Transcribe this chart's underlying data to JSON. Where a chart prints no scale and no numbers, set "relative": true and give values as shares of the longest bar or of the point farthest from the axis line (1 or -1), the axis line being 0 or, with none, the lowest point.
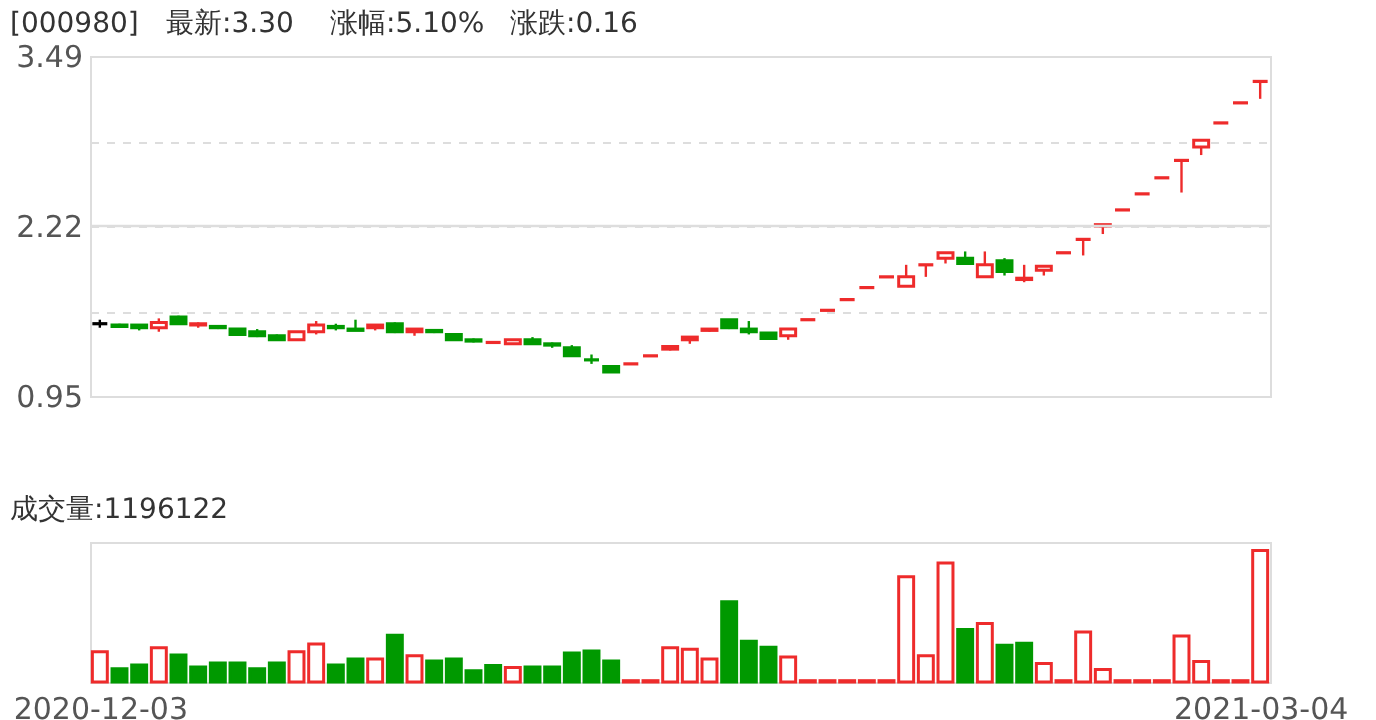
{
  "chart_data": [
    {
      "type": "candlestick",
      "title": "[000980]",
      "annotations": [
        "最新:3.30",
        "涨幅:5.10%",
        "涨跌:0.16"
      ],
      "categories": [
        "2020-12-03",
        null,
        null,
        null,
        null,
        null,
        null,
        null,
        null,
        null,
        null,
        null,
        null,
        null,
        null,
        null,
        null,
        null,
        null,
        null,
        null,
        null,
        null,
        null,
        null,
        null,
        null,
        null,
        null,
        null,
        null,
        null,
        null,
        null,
        null,
        null,
        null,
        null,
        null,
        null,
        null,
        null,
        null,
        null,
        null,
        null,
        null,
        null,
        null,
        null,
        null,
        null,
        null,
        null,
        null,
        null,
        null,
        null,
        null,
        "2021-03-04"
      ],
      "ohlc": [
        [
          1.49,
          1.52,
          1.46,
          1.49
        ],
        [
          1.48,
          1.49,
          1.46,
          1.47
        ],
        [
          1.48,
          1.48,
          1.44,
          1.46
        ],
        [
          1.46,
          1.53,
          1.43,
          1.5
        ],
        [
          1.54,
          1.55,
          1.49,
          1.49
        ],
        [
          1.48,
          1.5,
          1.46,
          1.49
        ],
        [
          1.47,
          1.48,
          1.45,
          1.46
        ],
        [
          1.45,
          1.45,
          1.4,
          1.41
        ],
        [
          1.43,
          1.45,
          1.39,
          1.4
        ],
        [
          1.4,
          1.41,
          1.37,
          1.37
        ],
        [
          1.37,
          1.43,
          1.37,
          1.43
        ],
        [
          1.43,
          1.51,
          1.41,
          1.48
        ],
        [
          1.47,
          1.49,
          1.44,
          1.46
        ],
        [
          1.45,
          1.52,
          1.44,
          1.44
        ],
        [
          1.46,
          1.48,
          1.44,
          1.48
        ],
        [
          1.49,
          1.5,
          1.42,
          1.43
        ],
        [
          1.43,
          1.45,
          1.4,
          1.45
        ],
        [
          1.44,
          1.45,
          1.42,
          1.43
        ],
        [
          1.41,
          1.41,
          1.37,
          1.37
        ],
        [
          1.37,
          1.38,
          1.35,
          1.36
        ],
        [
          1.35,
          1.36,
          1.35,
          1.35
        ],
        [
          1.34,
          1.37,
          1.34,
          1.37
        ],
        [
          1.37,
          1.39,
          1.34,
          1.34
        ],
        [
          1.34,
          1.35,
          1.31,
          1.33
        ],
        [
          1.31,
          1.33,
          1.25,
          1.25
        ],
        [
          1.22,
          1.26,
          1.19,
          1.22
        ],
        [
          1.17,
          1.17,
          1.13,
          1.13
        ],
        [
          1.19,
          1.19,
          1.19,
          1.19
        ],
        [
          1.25,
          1.25,
          1.25,
          1.25
        ],
        [
          1.3,
          1.32,
          1.29,
          1.32
        ],
        [
          1.37,
          1.39,
          1.34,
          1.39
        ],
        [
          1.44,
          1.45,
          1.43,
          1.45
        ],
        [
          1.52,
          1.52,
          1.45,
          1.46
        ],
        [
          1.45,
          1.51,
          1.41,
          1.43
        ],
        [
          1.42,
          1.42,
          1.37,
          1.38
        ],
        [
          1.4,
          1.45,
          1.37,
          1.45
        ],
        [
          1.52,
          1.52,
          1.52,
          1.52
        ],
        [
          1.59,
          1.59,
          1.59,
          1.59
        ],
        [
          1.67,
          1.67,
          1.67,
          1.67
        ],
        [
          1.76,
          1.76,
          1.76,
          1.76
        ],
        [
          1.84,
          1.84,
          1.84,
          1.84
        ],
        [
          1.77,
          1.93,
          1.77,
          1.84
        ],
        [
          1.93,
          1.93,
          1.84,
          1.93
        ],
        [
          1.98,
          2.02,
          1.94,
          2.02
        ],
        [
          1.98,
          2.03,
          1.94,
          1.94
        ],
        [
          1.84,
          2.03,
          1.84,
          1.93
        ],
        [
          1.96,
          1.98,
          1.85,
          1.88
        ],
        [
          1.82,
          1.93,
          1.8,
          1.83
        ],
        [
          1.89,
          1.92,
          1.85,
          1.92
        ],
        [
          2.02,
          2.02,
          2.02,
          2.02
        ],
        [
          2.12,
          2.12,
          2.0,
          2.12
        ],
        [
          2.22,
          2.23,
          2.16,
          2.23
        ],
        [
          2.34,
          2.34,
          2.34,
          2.34
        ],
        [
          2.46,
          2.46,
          2.46,
          2.46
        ],
        [
          2.58,
          2.58,
          2.58,
          2.58
        ],
        [
          2.71,
          2.71,
          2.47,
          2.71
        ],
        [
          2.81,
          2.86,
          2.75,
          2.86
        ],
        [
          2.99,
          2.99,
          2.99,
          2.99
        ],
        [
          3.14,
          3.14,
          3.14,
          3.14
        ],
        [
          3.3,
          3.3,
          3.17,
          3.3
        ]
      ],
      "colors": [
        "#000000",
        "#009900",
        "#009900",
        "#ee2b2b",
        "#009900",
        "#ee2b2b",
        "#009900",
        "#009900",
        "#009900",
        "#009900",
        "#ee2b2b",
        "#ee2b2b",
        "#009900",
        "#009900",
        "#ee2b2b",
        "#009900",
        "#ee2b2b",
        "#009900",
        "#009900",
        "#009900",
        "#ee2b2b",
        "#ee2b2b",
        "#009900",
        "#009900",
        "#009900",
        "#009900",
        "#009900",
        "#ee2b2b",
        "#ee2b2b",
        "#ee2b2b",
        "#ee2b2b",
        "#ee2b2b",
        "#009900",
        "#009900",
        "#009900",
        "#ee2b2b",
        "#ee2b2b",
        "#ee2b2b",
        "#ee2b2b",
        "#ee2b2b",
        "#ee2b2b",
        "#ee2b2b",
        "#ee2b2b",
        "#ee2b2b",
        "#009900",
        "#ee2b2b",
        "#009900",
        "#ee2b2b",
        "#ee2b2b",
        "#ee2b2b",
        "#ee2b2b",
        "#ee2b2b",
        "#ee2b2b",
        "#ee2b2b",
        "#ee2b2b",
        "#ee2b2b",
        "#ee2b2b",
        "#ee2b2b",
        "#ee2b2b",
        "#ee2b2b"
      ],
      "ylim": [
        0.95,
        3.49
      ],
      "yticks": [
        3.49,
        {
          "value": 2.855,
          "label": null
        },
        2.22,
        {
          "value": 1.585,
          "label": null
        },
        0.95
      ],
      "grid": "y",
      "tick_labels": "y",
      "ref_lines": [
        {
          "axis": "y",
          "value": 2.22,
          "color": "#dddddd",
          "line_style": "solid"
        }
      ]
    },
    {
      "type": "bar",
      "title": "成交量:1196122",
      "relative": true,
      "tick_labels": "x",
      "categories": [
        "2020-12-03",
        null,
        null,
        null,
        null,
        null,
        null,
        null,
        null,
        null,
        null,
        null,
        null,
        null,
        null,
        null,
        null,
        null,
        null,
        null,
        null,
        null,
        null,
        null,
        null,
        null,
        null,
        null,
        null,
        null,
        null,
        null,
        null,
        null,
        null,
        null,
        null,
        null,
        null,
        null,
        null,
        null,
        null,
        null,
        null,
        null,
        null,
        null,
        null,
        null,
        null,
        null,
        null,
        null,
        null,
        null,
        null,
        null,
        null,
        "2021-03-04"
      ],
      "values": [
        0.23,
        0.1,
        0.13,
        0.26,
        0.205,
        0.115,
        0.145,
        0.145,
        0.1,
        0.145,
        0.23,
        0.29,
        0.13,
        0.175,
        0.175,
        0.355,
        0.2,
        0.16,
        0.175,
        0.085,
        0.125,
        0.11,
        0.115,
        0.115,
        0.22,
        0.235,
        0.16,
        0.01,
        0.01,
        0.26,
        0.25,
        0.175,
        0.61,
        0.31,
        0.265,
        0.19,
        0.01,
        0.01,
        0.01,
        0.01,
        0.01,
        0.8,
        0.2,
        0.905,
        0.4,
        0.445,
        0.28,
        0.295,
        0.14,
        0.01,
        0.38,
        0.095,
        0.01,
        0.01,
        0.01,
        0.35,
        0.155,
        0.01,
        0.01,
        1
      ],
      "colors": [
        "#ee2b2b",
        "#009900",
        "#009900",
        "#ee2b2b",
        "#009900",
        "#009900",
        "#009900",
        "#009900",
        "#009900",
        "#009900",
        "#ee2b2b",
        "#ee2b2b",
        "#009900",
        "#009900",
        "#ee2b2b",
        "#009900",
        "#ee2b2b",
        "#009900",
        "#009900",
        "#009900",
        "#009900",
        "#ee2b2b",
        "#009900",
        "#009900",
        "#009900",
        "#009900",
        "#009900",
        "#ee2b2b",
        "#ee2b2b",
        "#ee2b2b",
        "#ee2b2b",
        "#ee2b2b",
        "#009900",
        "#009900",
        "#009900",
        "#ee2b2b",
        "#ee2b2b",
        "#ee2b2b",
        "#ee2b2b",
        "#ee2b2b",
        "#ee2b2b",
        "#ee2b2b",
        "#ee2b2b",
        "#ee2b2b",
        "#009900",
        "#ee2b2b",
        "#009900",
        "#009900",
        "#ee2b2b",
        "#ee2b2b",
        "#ee2b2b",
        "#ee2b2b",
        "#ee2b2b",
        "#ee2b2b",
        "#ee2b2b",
        "#ee2b2b",
        "#ee2b2b",
        "#ee2b2b",
        "#ee2b2b",
        "#ee2b2b"
      ]
    }
  ]
}
